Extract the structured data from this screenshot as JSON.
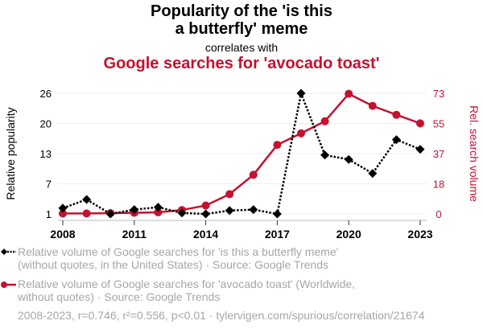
{
  "header": {
    "title_line1": "Popularity of the 'is this",
    "title_line2": "a butterfly' meme",
    "subtitle": "correlates with",
    "title2": "Google searches for 'avocado toast'"
  },
  "colors": {
    "series1": "#000000",
    "series2": "#c4122f",
    "grid": "#eeeeee",
    "legend_text": "#a6a6a6"
  },
  "chart_data": {
    "type": "line",
    "title": "Popularity of the 'is this a butterfly' meme correlates with Google searches for 'avocado toast'",
    "x": [
      2008,
      2009,
      2010,
      2011,
      2012,
      2013,
      2014,
      2015,
      2016,
      2017,
      2018,
      2019,
      2020,
      2021,
      2022,
      2023
    ],
    "xticks": [
      "2008",
      "2011",
      "2014",
      "2017",
      "2020",
      "2023"
    ],
    "xlim": [
      2008,
      2023
    ],
    "left_axis": {
      "label": "Relative popularity",
      "ticks": [
        "1",
        "7",
        "13",
        "20",
        "26"
      ],
      "tick_values": [
        1,
        7.25,
        13.5,
        19.75,
        26
      ],
      "ylim": [
        1,
        26
      ]
    },
    "right_axis": {
      "label": "Rel. search volume",
      "ticks": [
        "0",
        "18",
        "37",
        "55",
        "73"
      ],
      "tick_values": [
        0,
        18.25,
        36.5,
        54.75,
        73
      ],
      "ylim": [
        0,
        73
      ]
    },
    "grid": true,
    "series": [
      {
        "name": "Relative volume of Google searches for 'is this a butterfly meme' (without quotes, in the United States) · Source: Google Trends",
        "axis": "left",
        "style": "dotted",
        "marker": "diamond",
        "values": [
          2.2,
          4.0,
          1.0,
          1.9,
          2.4,
          1.2,
          1.0,
          1.7,
          1.9,
          1.0,
          26,
          13.2,
          12.3,
          9.4,
          16.4,
          14.4
        ]
      },
      {
        "name": "Relative volume of Google searches for 'avocado toast' (Worldwide, without quotes) · Source: Google Trends",
        "axis": "right",
        "style": "solid",
        "marker": "circle",
        "values": [
          0.3,
          0.3,
          0.5,
          0.7,
          1.0,
          2.4,
          5.1,
          12,
          23.7,
          41.8,
          48.8,
          56.1,
          72.7,
          65.4,
          60,
          54.8
        ]
      }
    ]
  },
  "legend": {
    "item1_line1": "Relative volume of Google searches for 'is this a butterfly meme'",
    "item1_line2": "(without quotes, in the United States) · Source: Google Trends",
    "item2_line1": "Relative volume of Google searches for 'avocado toast' (Worldwide,",
    "item2_line2": "without quotes) · Source: Google Trends"
  },
  "footer": {
    "stats": "2008-2023, r=0.746, r²=0.556, p<0.01 · tylervigen.com/spurious/correlation/21674"
  }
}
